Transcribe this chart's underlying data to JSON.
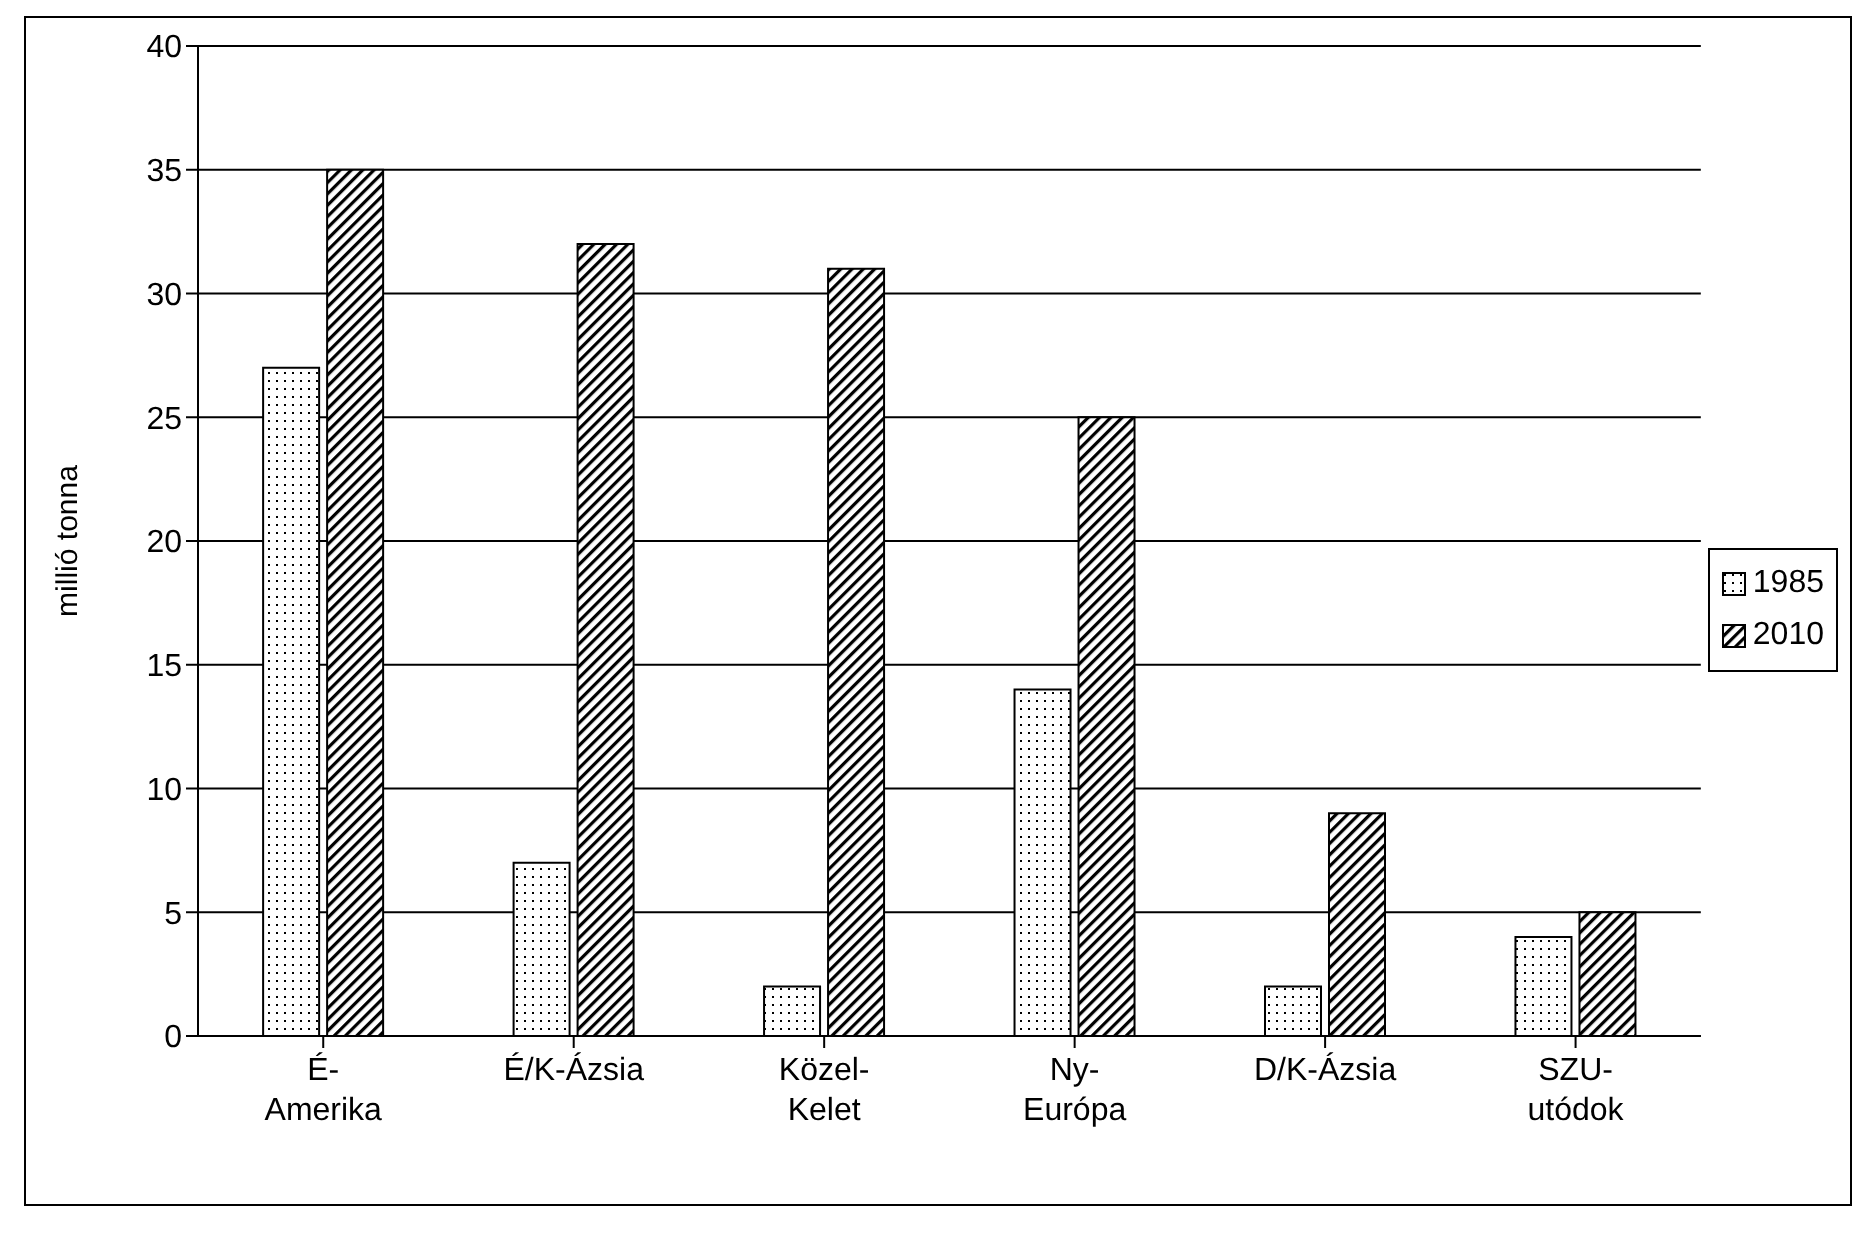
{
  "chart_data": {
    "type": "bar",
    "ylabel": "millió tonna",
    "categories": [
      "É-\nAmerika",
      "É/K-Ázsia",
      "Közel-\nKelet",
      "Ny-\nEurópa",
      "D/K-Ázsia",
      "SZU-\nutódok"
    ],
    "series": [
      {
        "name": "1985",
        "color": "#000000",
        "values": [
          27,
          7,
          2,
          14,
          2,
          4
        ]
      },
      {
        "name": "2010",
        "color": "#000000",
        "values": [
          35,
          32,
          31,
          25,
          9,
          5
        ]
      }
    ],
    "ylim": [
      0,
      40
    ],
    "yticks": [
      0,
      5,
      10,
      15,
      20,
      25,
      30,
      35,
      40
    ],
    "grid": "y",
    "legend": "right"
  }
}
